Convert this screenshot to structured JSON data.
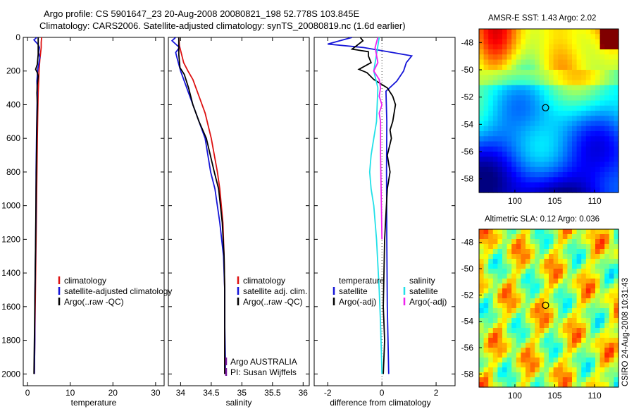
{
  "header": {
    "line1": "Argo profile: CS 5901647_23 20-Aug-2008 20080821_198 52.778S 103.845E",
    "line2": "Climatology: CARS2006. Satellite-adjusted climatology: synTS_20080819.nc (1.6d earlier)"
  },
  "credit": "CSIRO 24-Aug-2008 10:31:43",
  "colors": {
    "red": "#dd1111",
    "blue": "#1515d8",
    "black": "#000000",
    "cyan": "#22e0e8",
    "magenta": "#ee22ee",
    "purple": "#7a1aa0"
  },
  "chart_data": [
    {
      "type": "line",
      "id": "temperature",
      "xlabel": "temperature",
      "xlim": [
        -1,
        32
      ],
      "ylim": [
        2070,
        0
      ],
      "xticks": [
        "0",
        "10",
        "20",
        "30"
      ],
      "yticks": [
        "0",
        "200",
        "400",
        "600",
        "800",
        "1000",
        "1200",
        "1400",
        "1600",
        "1800",
        "2000"
      ],
      "legend": [
        "climatology",
        "satellite-adjusted climatology",
        "Argo(..raw -QC)"
      ],
      "series": [
        {
          "name": "climatology",
          "color": "red",
          "points": [
            [
              3.3,
              0
            ],
            [
              3.2,
              30
            ],
            [
              3.2,
              60
            ],
            [
              2.9,
              130
            ],
            [
              2.7,
              200
            ],
            [
              2.6,
              270
            ],
            [
              2.5,
              330
            ],
            [
              2.4,
              450
            ],
            [
              2.3,
              600
            ],
            [
              2.2,
              800
            ],
            [
              2.1,
              1000
            ],
            [
              2.0,
              1200
            ],
            [
              1.9,
              1400
            ],
            [
              1.8,
              1600
            ],
            [
              1.7,
              1800
            ],
            [
              1.6,
              2000
            ]
          ]
        },
        {
          "name": "satellite-adjusted climatology",
          "color": "blue",
          "points": [
            [
              2.2,
              0
            ],
            [
              1.5,
              15
            ],
            [
              2.4,
              40
            ],
            [
              2.8,
              60
            ],
            [
              2.6,
              90
            ],
            [
              2.9,
              120
            ],
            [
              2.4,
              190
            ],
            [
              2.2,
              260
            ],
            [
              2.3,
              330
            ],
            [
              2.2,
              450
            ],
            [
              2.1,
              600
            ],
            [
              2.0,
              800
            ],
            [
              2.0,
              1000
            ],
            [
              1.9,
              1200
            ],
            [
              1.8,
              1400
            ],
            [
              1.7,
              1600
            ],
            [
              1.7,
              1800
            ],
            [
              1.6,
              2000
            ]
          ]
        },
        {
          "name": "Argo(..raw -QC)",
          "color": "black",
          "points": [
            [
              2.5,
              0
            ],
            [
              2.5,
              100
            ],
            [
              2.3,
              160
            ],
            [
              1.9,
              190
            ],
            [
              2.3,
              210
            ],
            [
              2.5,
              230
            ],
            [
              2.3,
              280
            ],
            [
              2.2,
              330
            ],
            [
              2.3,
              400
            ],
            [
              2.2,
              500
            ],
            [
              2.1,
              700
            ],
            [
              2.0,
              900
            ],
            [
              1.9,
              1200
            ],
            [
              1.8,
              1400
            ],
            [
              1.7,
              1600
            ],
            [
              1.6,
              1800
            ],
            [
              1.5,
              2000
            ]
          ]
        }
      ]
    },
    {
      "type": "line",
      "id": "salinity",
      "xlabel": "salinity",
      "xlim": [
        33.8,
        36.1
      ],
      "ylim": [
        2070,
        0
      ],
      "xticks": [
        "34",
        "34.5",
        "35",
        "35.5",
        "36"
      ],
      "legend": [
        "climatology",
        "satellite adj. clim.",
        "Argo(..raw -QC)"
      ],
      "annotation": [
        "Argo AUSTRALIA",
        "PI: Susan Wijffels"
      ],
      "series": [
        {
          "name": "climatology",
          "color": "red",
          "points": [
            [
              33.97,
              0
            ],
            [
              33.98,
              50
            ],
            [
              34.05,
              150
            ],
            [
              34.12,
              200
            ],
            [
              34.2,
              250
            ],
            [
              34.3,
              350
            ],
            [
              34.4,
              450
            ],
            [
              34.5,
              600
            ],
            [
              34.6,
              800
            ],
            [
              34.64,
              900
            ],
            [
              34.69,
              1100
            ],
            [
              34.71,
              1300
            ],
            [
              34.72,
              1500
            ],
            [
              34.72,
              1700
            ],
            [
              34.72,
              1900
            ],
            [
              34.72,
              2000
            ]
          ]
        },
        {
          "name": "satellite adj. clim.",
          "color": "blue",
          "points": [
            [
              33.92,
              0
            ],
            [
              33.86,
              20
            ],
            [
              33.98,
              60
            ],
            [
              33.92,
              90
            ],
            [
              33.94,
              120
            ],
            [
              34.0,
              200
            ],
            [
              34.1,
              300
            ],
            [
              34.2,
              400
            ],
            [
              34.3,
              500
            ],
            [
              34.4,
              600
            ],
            [
              34.49,
              800
            ],
            [
              34.56,
              900
            ],
            [
              34.64,
              1100
            ],
            [
              34.7,
              1300
            ],
            [
              34.72,
              1500
            ],
            [
              34.72,
              1700
            ],
            [
              34.73,
              1900
            ],
            [
              34.73,
              2000
            ]
          ]
        },
        {
          "name": "Argo(..raw -QC)",
          "color": "black",
          "points": [
            [
              33.97,
              0
            ],
            [
              33.97,
              100
            ],
            [
              33.99,
              180
            ],
            [
              34.06,
              220
            ],
            [
              34.13,
              300
            ],
            [
              34.2,
              400
            ],
            [
              34.3,
              500
            ],
            [
              34.42,
              600
            ],
            [
              34.55,
              800
            ],
            [
              34.62,
              900
            ],
            [
              34.68,
              1100
            ],
            [
              34.71,
              1300
            ],
            [
              34.72,
              1500
            ],
            [
              34.72,
              1700
            ],
            [
              34.72,
              1900
            ],
            [
              34.72,
              2000
            ]
          ]
        }
      ]
    },
    {
      "type": "line",
      "id": "difference",
      "xlabel": "difference from climatology",
      "xlim": [
        -2.5,
        2.7
      ],
      "ylim": [
        2070,
        0
      ],
      "xticks": [
        "-2",
        "0",
        "2"
      ],
      "legend_left": {
        "title": "temperature",
        "items": [
          "satellite",
          "Argo(-adj)"
        ]
      },
      "legend_right": {
        "title": "salinity",
        "items": [
          "satellite",
          "Argo(-adj)"
        ]
      },
      "series": [
        {
          "name": "temperature satellite",
          "color": "blue",
          "points": [
            [
              -1.1,
              0
            ],
            [
              -2.0,
              40
            ],
            [
              -0.7,
              60
            ],
            [
              0.4,
              90
            ],
            [
              1.1,
              110
            ],
            [
              0.9,
              150
            ],
            [
              0.8,
              200
            ],
            [
              0.55,
              260
            ],
            [
              0.15,
              320
            ],
            [
              0.18,
              500
            ],
            [
              0.17,
              800
            ],
            [
              0.18,
              1200
            ],
            [
              0.2,
              1600
            ],
            [
              0.25,
              2000
            ]
          ]
        },
        {
          "name": "temperature Argo(-adj)",
          "color": "black",
          "points": [
            [
              -0.8,
              0
            ],
            [
              -0.7,
              20
            ],
            [
              -1.1,
              70
            ],
            [
              -0.5,
              85
            ],
            [
              -0.5,
              110
            ],
            [
              -0.4,
              150
            ],
            [
              -0.85,
              190
            ],
            [
              -0.55,
              210
            ],
            [
              -0.3,
              250
            ],
            [
              0.2,
              300
            ],
            [
              0.4,
              350
            ],
            [
              0.5,
              400
            ],
            [
              0.4,
              500
            ],
            [
              0.3,
              550
            ],
            [
              0.35,
              600
            ],
            [
              0.2,
              700
            ],
            [
              0.3,
              800
            ],
            [
              0.2,
              900
            ],
            [
              0.1,
              1200
            ],
            [
              0.05,
              1600
            ],
            [
              0.1,
              1800
            ],
            [
              0.05,
              2000
            ]
          ]
        },
        {
          "name": "salinity satellite",
          "color": "cyan",
          "points": [
            [
              -0.1,
              0
            ],
            [
              -0.2,
              100
            ],
            [
              -0.3,
              200
            ],
            [
              -0.15,
              300
            ],
            [
              -0.2,
              500
            ],
            [
              -0.3,
              600
            ],
            [
              -0.4,
              700
            ],
            [
              -0.45,
              800
            ],
            [
              -0.4,
              900
            ],
            [
              -0.3,
              1000
            ],
            [
              -0.2,
              1200
            ],
            [
              -0.1,
              1500
            ],
            [
              -0.05,
              1700
            ],
            [
              0.0,
              2000
            ]
          ]
        },
        {
          "name": "salinity Argo(-adj)",
          "color": "magenta",
          "points": [
            [
              -0.15,
              0
            ],
            [
              -0.25,
              60
            ],
            [
              -0.15,
              150
            ],
            [
              -0.3,
              200
            ],
            [
              -0.1,
              250
            ],
            [
              -0.05,
              300
            ],
            [
              -0.1,
              350
            ],
            [
              0.0,
              400
            ],
            [
              -0.1,
              450
            ],
            [
              -0.05,
              500
            ],
            [
              -0.05,
              700
            ],
            [
              -0.03,
              900
            ],
            [
              0.0,
              1200
            ]
          ]
        }
      ]
    }
  ],
  "maps": [
    {
      "title": "AMSR-E SST: 1.43 Argo: 2.02",
      "type": "sst",
      "lon": [
        95.5,
        113
      ],
      "lat": [
        -59,
        -47
      ],
      "xticks": [
        "100",
        "105",
        "110"
      ],
      "yticks": [
        "-48",
        "-50",
        "-52",
        "-54",
        "-56",
        "-58"
      ],
      "marker": [
        103.845,
        -52.778
      ]
    },
    {
      "title": "Altimetric SLA: 0.12 Argo: 0.036",
      "type": "sla",
      "lon": [
        95.5,
        113
      ],
      "lat": [
        -59,
        -47
      ],
      "xticks": [
        "100",
        "105",
        "110"
      ],
      "yticks": [
        "-48",
        "-50",
        "-52",
        "-54",
        "-56",
        "-58"
      ],
      "marker": [
        103.845,
        -52.778
      ]
    }
  ]
}
